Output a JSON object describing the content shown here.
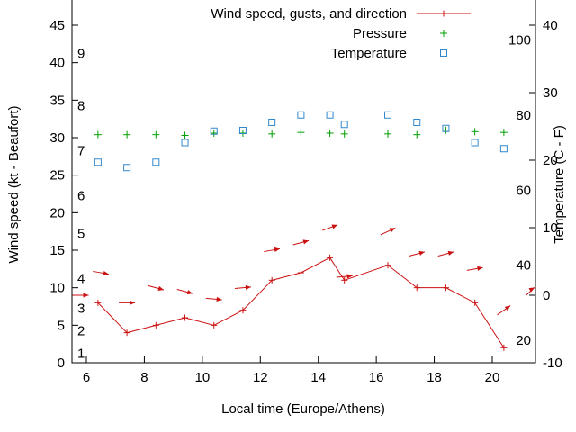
{
  "chart_data": {
    "type": "line",
    "title": "",
    "xlabel": "Local time (Europe/Athens)",
    "ylabel_left": "Wind speed (kt - Beaufort)",
    "ylabel_right": "Temperature (C - F)",
    "x_range": [
      5.5,
      21.5
    ],
    "x_ticks": [
      6,
      8,
      10,
      12,
      14,
      16,
      18,
      20
    ],
    "y_left_range": [
      0,
      48
    ],
    "y_left_ticks": [
      0,
      5,
      10,
      15,
      20,
      25,
      30,
      35,
      40,
      45
    ],
    "y_right_range": [
      -10,
      43
    ],
    "y_right_ticks": [
      -10,
      0,
      10,
      20,
      30,
      40
    ],
    "grid": false,
    "legend_position": "top-center-inside",
    "legend": [
      {
        "label": "Wind speed, gusts, and direction",
        "marker": "line-plus",
        "color": "#cc1111"
      },
      {
        "label": "Pressure",
        "marker": "plus",
        "color": "#00a000"
      },
      {
        "label": "Temperature",
        "marker": "open-square",
        "color": "#3388cc"
      }
    ],
    "beaufort_scale_labels": [
      {
        "label": "1",
        "kt": 1
      },
      {
        "label": "2",
        "kt": 4
      },
      {
        "label": "3",
        "kt": 7
      },
      {
        "label": "4",
        "kt": 11
      },
      {
        "label": "5",
        "kt": 17
      },
      {
        "label": "6",
        "kt": 22
      },
      {
        "label": "7",
        "kt": 28
      },
      {
        "label": "8",
        "kt": 34
      },
      {
        "label": "9",
        "kt": 41
      }
    ],
    "fahrenheit_scale_labels": [
      20,
      40,
      60,
      80,
      100
    ],
    "series": {
      "wind_speed": {
        "name": "Wind speed",
        "unit": "kt",
        "color": "#cc1111",
        "x": [
          6.4,
          7.4,
          8.4,
          9.4,
          10.4,
          11.4,
          12.4,
          13.4,
          14.4,
          14.9,
          16.4,
          17.4,
          18.4,
          19.4,
          20.4
        ],
        "values": [
          8,
          4,
          5,
          6,
          5,
          7,
          11,
          12,
          14,
          11,
          13,
          10,
          10,
          8,
          2
        ]
      },
      "gusts": {
        "name": "Gusts and direction",
        "unit": "kt",
        "color": "#cc1111",
        "x": [
          5.8,
          6.5,
          7.4,
          8.4,
          9.4,
          10.4,
          11.4,
          12.4,
          13.4,
          14.4,
          14.9,
          16.4,
          17.4,
          18.4,
          19.4,
          20.4,
          21.4
        ],
        "values": [
          9,
          12,
          8,
          10,
          9.5,
          8.5,
          10,
          15,
          16,
          18,
          11.5,
          17.5,
          14.5,
          14.5,
          12.5,
          7,
          9.5
        ],
        "direction_deg": [
          0,
          -10,
          0,
          -15,
          -15,
          -5,
          5,
          10,
          15,
          20,
          5,
          25,
          15,
          15,
          10,
          35,
          30
        ]
      },
      "pressure": {
        "name": "Pressure",
        "color": "#00a000",
        "x": [
          6.4,
          7.4,
          8.4,
          9.4,
          10.4,
          11.4,
          12.4,
          13.4,
          14.4,
          14.9,
          16.4,
          17.4,
          18.4,
          19.4,
          20.4
        ],
        "values": [
          30.4,
          30.4,
          30.4,
          30.3,
          30.6,
          30.6,
          30.5,
          30.7,
          30.6,
          30.5,
          30.5,
          30.4,
          31.0,
          30.8,
          30.7
        ]
      },
      "temperature": {
        "name": "Temperature",
        "unit": "C",
        "axis": "right",
        "color": "#3388cc",
        "x": [
          6.4,
          7.4,
          8.4,
          9.4,
          10.4,
          11.4,
          12.4,
          13.4,
          14.4,
          14.9,
          16.4,
          17.4,
          18.4,
          19.4,
          20.4
        ],
        "values_c": [
          19.7,
          18.9,
          19.7,
          22.6,
          24.3,
          24.4,
          25.6,
          26.7,
          26.7,
          25.3,
          26.7,
          25.6,
          24.7,
          22.6,
          21.7
        ]
      }
    }
  }
}
